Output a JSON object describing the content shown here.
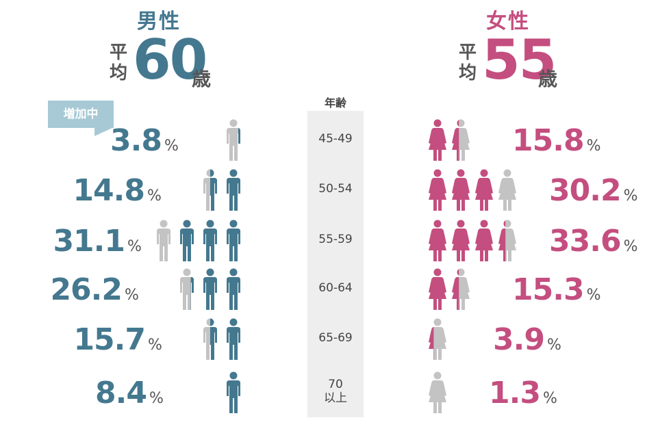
{
  "colors": {
    "male": "#44788f",
    "female": "#c44e7f",
    "empty": "#c3c3c3",
    "age_bg": "#eeeeee",
    "badge": "#a7c9d6"
  },
  "male": {
    "title": "男性",
    "avg_prefix": "平均",
    "avg_value": "60",
    "avg_suffix": "歳",
    "badge": "増加中"
  },
  "female": {
    "title": "女性",
    "avg_prefix": "平均",
    "avg_value": "55",
    "avg_suffix": "歳"
  },
  "age_header": "年齢",
  "percent_unit": "%",
  "rows": [
    {
      "age": "45-49",
      "male_pct": "3.8",
      "female_pct": "15.8"
    },
    {
      "age": "50-54",
      "male_pct": "14.8",
      "female_pct": "30.2"
    },
    {
      "age": "55-59",
      "male_pct": "31.1",
      "female_pct": "33.6"
    },
    {
      "age": "60-64",
      "male_pct": "26.2",
      "female_pct": "15.3"
    },
    {
      "age": "65-69",
      "male_pct": "15.7",
      "female_pct": "3.9"
    },
    {
      "age": "70\n以上",
      "male_pct": "8.4",
      "female_pct": "1.3"
    }
  ],
  "chart_data": {
    "type": "table",
    "categories": [
      "45-49",
      "50-54",
      "55-59",
      "60-64",
      "65-69",
      "70以上"
    ],
    "series": [
      {
        "name": "男性",
        "values": [
          3.8,
          14.8,
          31.1,
          26.2,
          15.7,
          8.4
        ]
      },
      {
        "name": "女性",
        "values": [
          15.8,
          30.2,
          33.6,
          15.3,
          3.9,
          1.3
        ]
      }
    ],
    "unit": "%",
    "averages": {
      "男性": 60,
      "女性": 55
    },
    "icon_fills": {
      "男性": [
        [
          0.25
        ],
        [
          0.5,
          1
        ],
        [
          0,
          1,
          1,
          1
        ],
        [
          0.3,
          1,
          1
        ],
        [
          0.5,
          1
        ],
        [
          1
        ]
      ],
      "女性": [
        [
          1,
          0.4
        ],
        [
          1,
          1,
          1,
          0
        ],
        [
          1,
          1,
          1,
          0.4
        ],
        [
          1,
          0.4
        ],
        [
          0.3
        ],
        [
          0
        ]
      ]
    }
  }
}
